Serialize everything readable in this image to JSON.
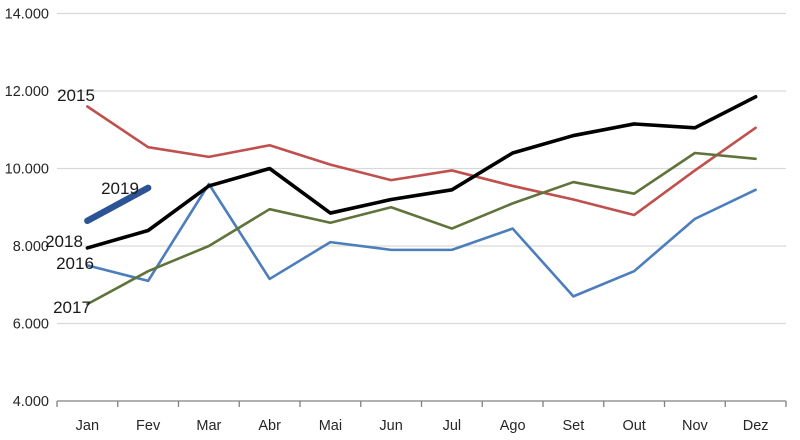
{
  "chart_data": {
    "type": "line",
    "title": "",
    "xlabel": "",
    "ylabel": "",
    "categories": [
      "Jan",
      "Fev",
      "Mar",
      "Abr",
      "Mai",
      "Jun",
      "Jul",
      "Ago",
      "Set",
      "Out",
      "Nov",
      "Dez"
    ],
    "y_axis": {
      "min": 4000,
      "max": 14000,
      "step": 2000,
      "tick_labels": [
        "4.000",
        "6.000",
        "8.000",
        "10.000",
        "12.000",
        "14.000"
      ],
      "tick_values": [
        4000,
        6000,
        8000,
        10000,
        12000,
        14000
      ]
    },
    "grid": true,
    "legend_position": "inline-labels",
    "series": [
      {
        "name": "2015",
        "color": "#C0504D",
        "stroke_width": 2.6,
        "values": [
          11600,
          10550,
          10300,
          10600,
          10100,
          9700,
          9950,
          9550,
          9200,
          8800,
          9950,
          11050
        ]
      },
      {
        "name": "2016",
        "color": "#4C7EBC",
        "stroke_width": 2.6,
        "values": [
          7500,
          7100,
          9600,
          7150,
          8100,
          7900,
          7900,
          8450,
          6700,
          7350,
          8700,
          9450
        ]
      },
      {
        "name": "2017",
        "color": "#5F733A",
        "stroke_width": 2.6,
        "values": [
          6500,
          7350,
          8000,
          8950,
          8600,
          9000,
          8450,
          9100,
          9650,
          9350,
          10400,
          10250
        ]
      },
      {
        "name": "2018",
        "color": "#000000",
        "stroke_width": 3.6,
        "values": [
          7950,
          8400,
          9550,
          10000,
          8850,
          9200,
          9450,
          10400,
          10850,
          11150,
          11050,
          11850
        ]
      },
      {
        "name": "2019",
        "color": "#2A5496",
        "stroke_width": 6.5,
        "values": [
          8650,
          9500,
          null,
          null,
          null,
          null,
          null,
          null,
          null,
          null,
          null,
          null
        ]
      }
    ],
    "series_labels": [
      {
        "text": "2015",
        "x": 76,
        "y": 95
      },
      {
        "text": "2019",
        "x": 120,
        "y": 188
      },
      {
        "text": "2018",
        "x": 64,
        "y": 241
      },
      {
        "text": "2016",
        "x": 75,
        "y": 263
      },
      {
        "text": "2017",
        "x": 72,
        "y": 307
      }
    ],
    "colors": {
      "gridline": "#D9D9D9",
      "axis_line": "#808080",
      "tick": "#808080",
      "text": "#262626"
    }
  }
}
